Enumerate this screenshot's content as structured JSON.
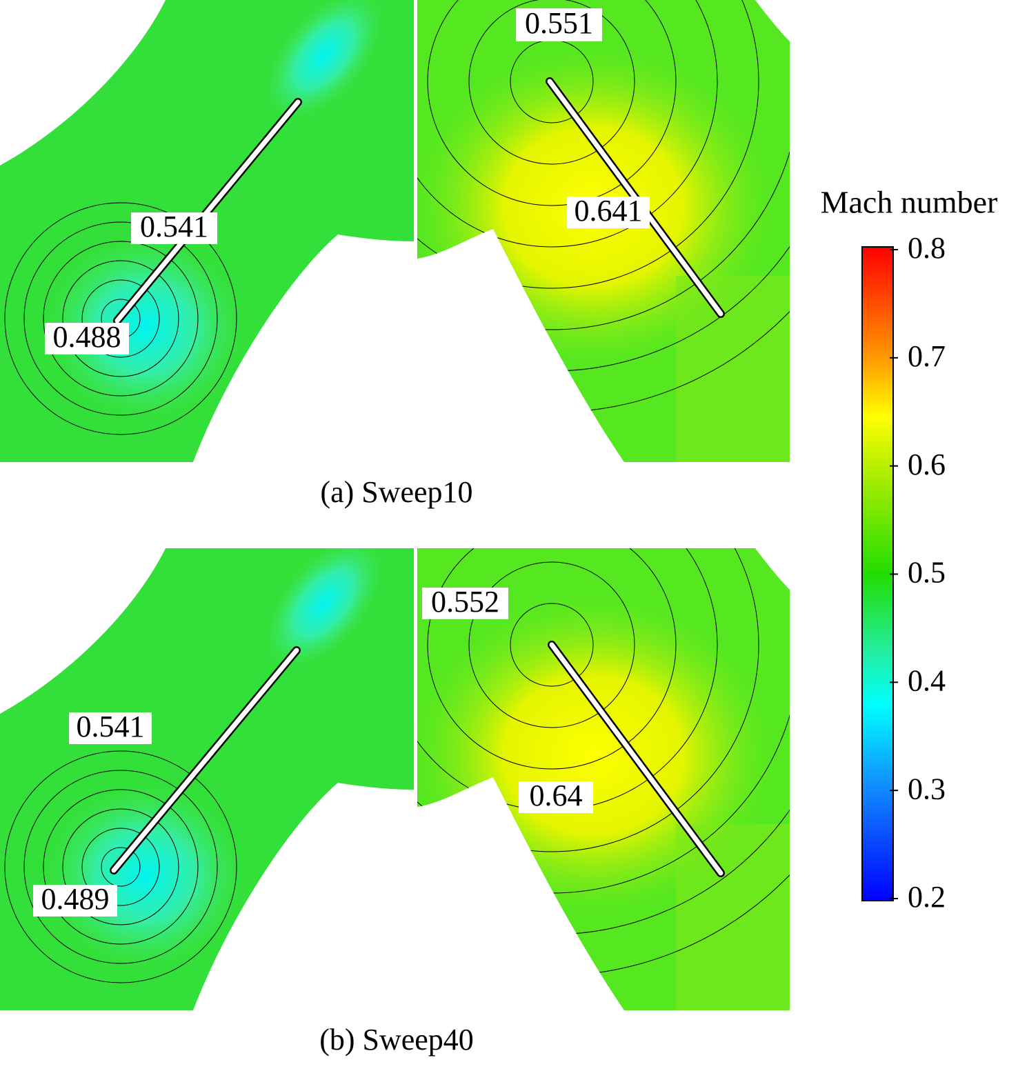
{
  "panels": [
    {
      "caption": "(a) Sweep10",
      "probes": [
        0.541,
        0.488,
        0.551,
        0.641
      ]
    },
    {
      "caption": "(b) Sweep40",
      "probes": [
        0.541,
        0.489,
        0.552,
        0.64
      ]
    }
  ],
  "colorbar": {
    "title": "Mach number",
    "lim": [
      0.2,
      0.8
    ],
    "ticks": [
      0.2,
      0.3,
      0.4,
      0.5,
      0.6,
      0.7,
      0.8
    ]
  }
}
